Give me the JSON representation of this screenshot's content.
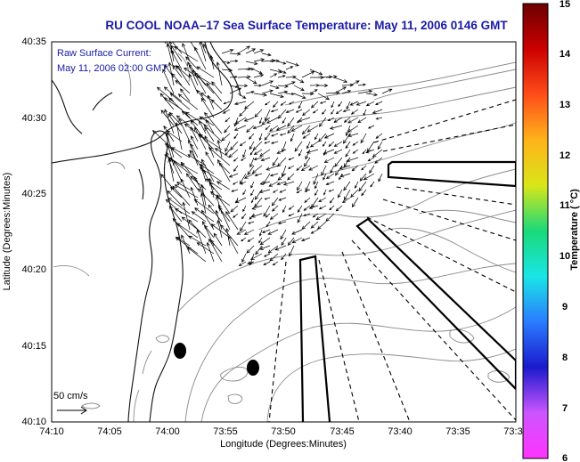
{
  "title": "RU COOL  NOAA–17  Sea Surface Temperature:  May 11, 2006 0146 GMT",
  "annotation": {
    "line1": "Raw Surface Current:",
    "line2": "May 11, 2006 02:00 GMT"
  },
  "axes": {
    "xlabel": "Longitude (Degrees:Minutes)",
    "ylabel": "Latitude (Degrees:Minutes)",
    "xticks": [
      "74:10",
      "74:05",
      "74:00",
      "73:55",
      "73:50",
      "73:45",
      "73:40",
      "73:35",
      "73:3"
    ],
    "yticks": [
      "40:35",
      "40:30",
      "40:25",
      "40:20",
      "40:15",
      "40:10"
    ]
  },
  "scale_bar": {
    "label": "50 cm/s"
  },
  "colorbar": {
    "label": "Temperature ( °C)",
    "ticks": [
      "15",
      "14",
      "13",
      "12",
      "11",
      "10",
      "9",
      "8",
      "7",
      "6"
    ],
    "range": [
      6,
      15
    ],
    "colors": [
      "#ff33ff",
      "#cc55ff",
      "#1a1acc",
      "#2a7bff",
      "#19e6e6",
      "#1ad97a",
      "#d9e619",
      "#ffb31a",
      "#ff4d1a",
      "#cc0000",
      "#6b0000"
    ]
  }
}
